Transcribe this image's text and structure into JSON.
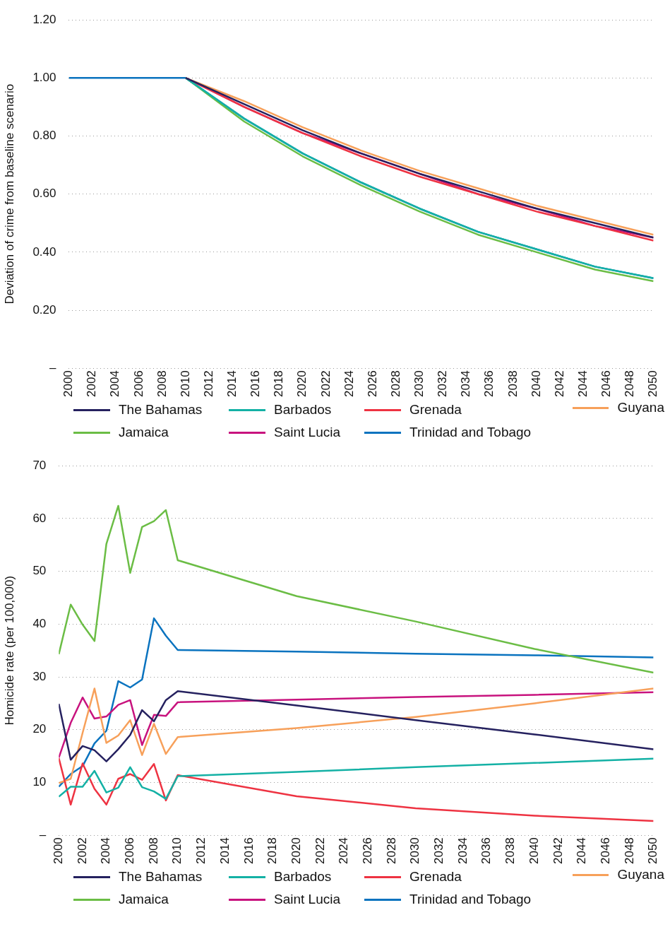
{
  "chart_data": [
    {
      "type": "line",
      "ylabel": "Deviation of crime from baseline scenario",
      "x": [
        2000,
        2001,
        2002,
        2003,
        2004,
        2005,
        2006,
        2007,
        2008,
        2009,
        2010,
        2015,
        2020,
        2025,
        2030,
        2035,
        2040,
        2045,
        2050
      ],
      "xlim": [
        2000,
        2050
      ],
      "xticks": [
        2000,
        2002,
        2004,
        2006,
        2008,
        2010,
        2012,
        2014,
        2016,
        2018,
        2020,
        2022,
        2024,
        2026,
        2028,
        2030,
        2032,
        2034,
        2036,
        2038,
        2040,
        2042,
        2044,
        2046,
        2048,
        2050
      ],
      "ylim": [
        0,
        1.2
      ],
      "yticks": [
        {
          "value": 0,
          "label": "–"
        },
        {
          "value": 0.2,
          "label": "0.20"
        },
        {
          "value": 0.4,
          "label": "0.40"
        },
        {
          "value": 0.6,
          "label": "0.60"
        },
        {
          "value": 0.8,
          "label": "0.80"
        },
        {
          "value": 1,
          "label": "1.00"
        },
        {
          "value": 1.2,
          "label": "1.20"
        }
      ],
      "grid": "y",
      "legend": "bottom",
      "marker": "none",
      "line_style": "solid",
      "series": [
        {
          "name": "The Bahamas",
          "color": "#25215f",
          "values": [
            null,
            null,
            null,
            null,
            null,
            null,
            null,
            null,
            null,
            null,
            1,
            0.91,
            0.82,
            0.74,
            0.67,
            0.61,
            0.55,
            0.5,
            0.45
          ]
        },
        {
          "name": "Barbados",
          "color": "#14b1a5",
          "values": [
            null,
            null,
            null,
            null,
            null,
            null,
            null,
            null,
            null,
            null,
            1,
            0.86,
            0.74,
            0.64,
            0.55,
            0.47,
            0.41,
            0.35,
            0.31
          ]
        },
        {
          "name": "Grenada",
          "color": "#ee3342",
          "values": [
            null,
            null,
            null,
            null,
            null,
            null,
            null,
            null,
            null,
            null,
            1,
            0.9,
            0.81,
            0.73,
            0.66,
            0.6,
            0.54,
            0.49,
            0.44
          ]
        },
        {
          "name": "Guyana",
          "color": "#f7a05a",
          "values": [
            null,
            null,
            null,
            null,
            null,
            null,
            null,
            null,
            null,
            null,
            1,
            0.92,
            0.83,
            0.75,
            0.68,
            0.62,
            0.56,
            0.51,
            0.46
          ]
        },
        {
          "name": "Jamaica",
          "color": "#6bbd45",
          "values": [
            null,
            null,
            null,
            null,
            null,
            null,
            null,
            null,
            null,
            null,
            1,
            0.85,
            0.73,
            0.63,
            0.54,
            0.46,
            0.4,
            0.34,
            0.3
          ]
        },
        {
          "name": "Saint Lucia",
          "color": "#c8137e",
          "values": [
            null,
            null,
            null,
            null,
            null,
            null,
            null,
            null,
            null,
            null,
            1,
            0.9,
            0.81,
            0.74,
            0.67,
            0.6,
            0.55,
            0.49,
            0.45
          ]
        },
        {
          "name": "Trinidad and Tobago",
          "color": "#0a73bf",
          "values": [
            1,
            1,
            1,
            1,
            1,
            1,
            1,
            1,
            1,
            1,
            1,
            0.86,
            0.74,
            0.64,
            0.55,
            0.47,
            0.41,
            0.35,
            0.31
          ]
        }
      ]
    },
    {
      "type": "line",
      "ylabel": "Homicide rate (per 100,000)",
      "x": [
        2000,
        2001,
        2002,
        2003,
        2004,
        2005,
        2006,
        2007,
        2008,
        2009,
        2010,
        2020,
        2030,
        2040,
        2050
      ],
      "xlim": [
        2000,
        2050
      ],
      "xticks": [
        2000,
        2002,
        2004,
        2006,
        2008,
        2010,
        2012,
        2014,
        2016,
        2018,
        2020,
        2022,
        2024,
        2026,
        2028,
        2030,
        2032,
        2034,
        2036,
        2038,
        2040,
        2042,
        2044,
        2046,
        2048,
        2050
      ],
      "ylim": [
        0,
        70
      ],
      "yticks": [
        {
          "value": 0,
          "label": "–"
        },
        10,
        20,
        30,
        40,
        50,
        60,
        70
      ],
      "grid": "y",
      "legend": "bottom",
      "marker": "none",
      "line_style": "solid",
      "series": [
        {
          "name": "The Bahamas",
          "color": "#25215f",
          "values": [
            24.9,
            14.3,
            16.9,
            16.1,
            14,
            16.3,
            19,
            23.7,
            21.6,
            25.6,
            27.3,
            24.6,
            21.8,
            19.1,
            16.3
          ]
        },
        {
          "name": "Barbados",
          "color": "#14b1a5",
          "values": [
            7.3,
            9.2,
            9.2,
            12.2,
            8.1,
            9,
            12.9,
            9.1,
            8.3,
            6.9,
            11.2,
            12,
            12.9,
            13.7,
            14.5
          ]
        },
        {
          "name": "Grenada",
          "color": "#ee3342",
          "values": [
            14.6,
            5.8,
            13.6,
            8.8,
            5.8,
            10.7,
            11.6,
            10.5,
            13.5,
            6.6,
            11.4,
            7.4,
            5.1,
            3.7,
            2.7
          ]
        },
        {
          "name": "Guyana",
          "color": "#f7a05a",
          "values": [
            9.9,
            10.7,
            19.4,
            27.8,
            17.5,
            18.9,
            21.8,
            15.2,
            21.1,
            15.4,
            18.6,
            20.3,
            22.4,
            25,
            27.8
          ]
        },
        {
          "name": "Jamaica",
          "color": "#6bbd45",
          "values": [
            34.3,
            43.7,
            39.9,
            36.8,
            55.2,
            62.4,
            49.7,
            58.4,
            59.5,
            61.6,
            52.1,
            45.3,
            40.5,
            35.3,
            30.8
          ]
        },
        {
          "name": "Saint Lucia",
          "color": "#c8137e",
          "values": [
            14.7,
            21.3,
            26.1,
            22.1,
            22.5,
            24.7,
            25.6,
            17.1,
            22.8,
            22.6,
            25.2,
            25.7,
            26.2,
            26.6,
            27.1
          ]
        },
        {
          "name": "Trinidad and Tobago",
          "color": "#0a73bf",
          "values": [
            9.2,
            11.6,
            13.1,
            17.4,
            19.8,
            29.2,
            28,
            29.5,
            41.1,
            37.8,
            35.1,
            34.8,
            34.4,
            34.1,
            33.7
          ]
        }
      ]
    }
  ]
}
